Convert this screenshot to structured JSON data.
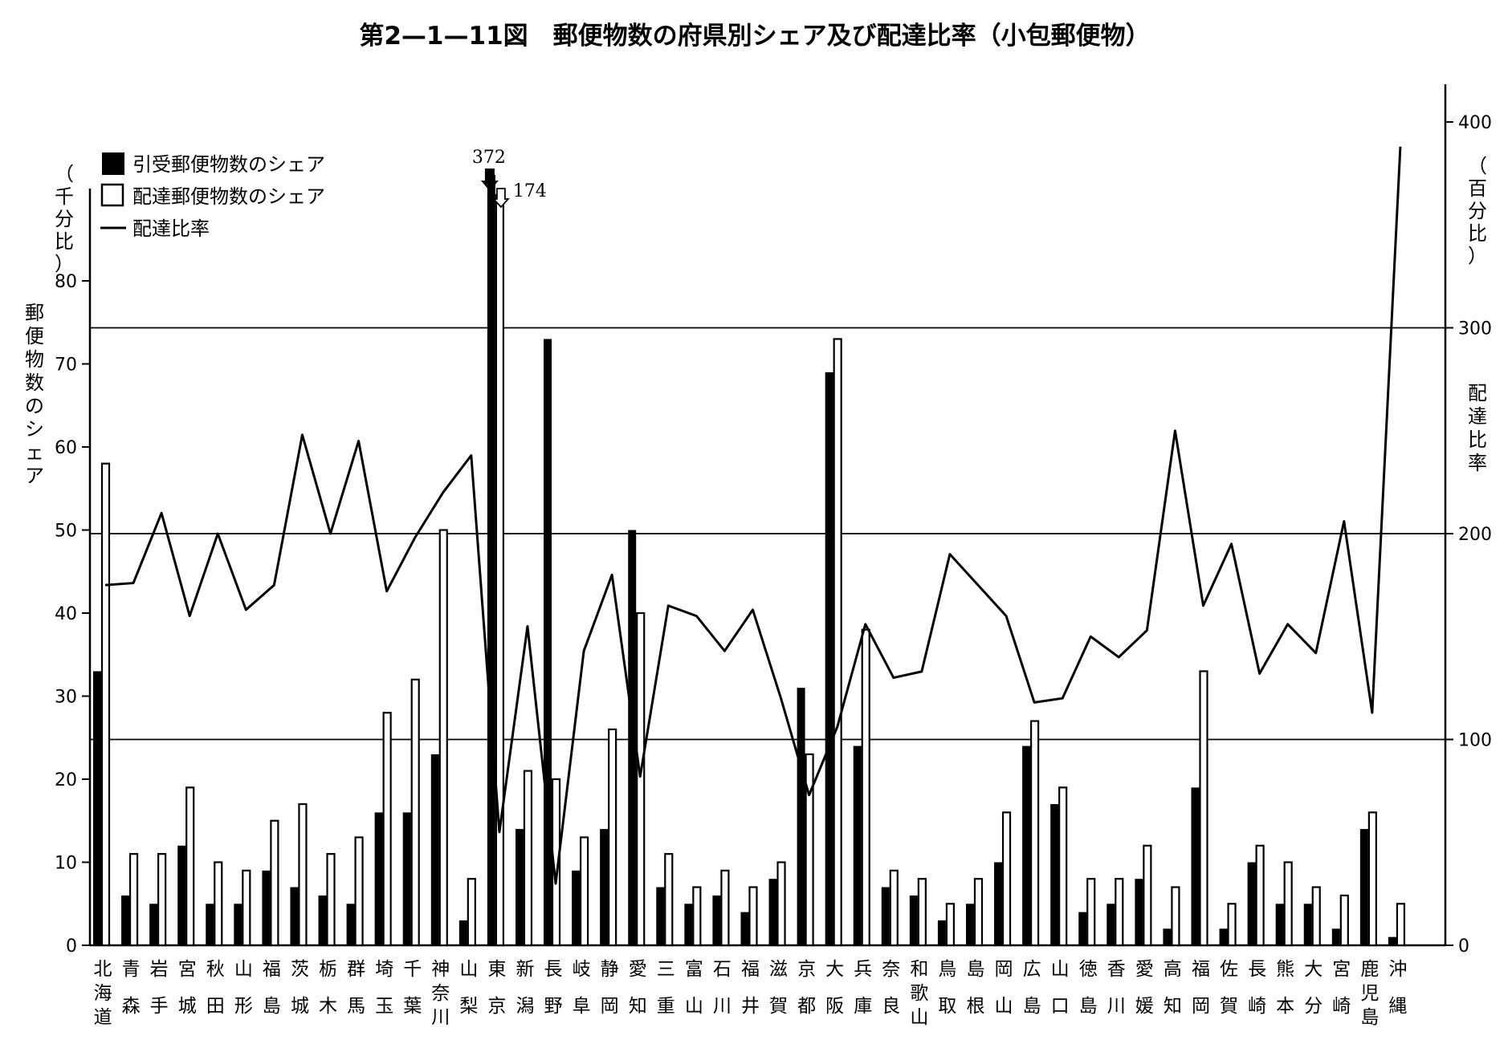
{
  "chart_data": {
    "type": "bar",
    "title": "第2—1—11図　郵便物数の府県別シェア及び配達比率（小包郵便物）",
    "ylabel_left": "郵便物数のシェア",
    "ylabel_left_unit": "（千分比）",
    "ylabel_right": "配達比率",
    "ylabel_right_unit": "（百分比）",
    "ylim_left": [
      0,
      80
    ],
    "ylim_right": [
      0,
      400
    ],
    "yticks_left": [
      "0",
      "10",
      "20",
      "30",
      "40",
      "50",
      "60",
      "70",
      "80"
    ],
    "yticks_right": [
      "0",
      "100",
      "200",
      "300",
      "400"
    ],
    "categories": [
      "北海道",
      "青森",
      "岩手",
      "宮城",
      "秋田",
      "山形",
      "福島",
      "茨城",
      "栃木",
      "群馬",
      "埼玉",
      "千葉",
      "神奈川",
      "山梨",
      "東京",
      "新潟",
      "長野",
      "岐阜",
      "静岡",
      "愛知",
      "三重",
      "富山",
      "石川",
      "福井",
      "滋賀",
      "京都",
      "大阪",
      "兵庫",
      "奈良",
      "和歌山",
      "鳥取",
      "島根",
      "岡山",
      "広島",
      "山口",
      "徳島",
      "香川",
      "愛媛",
      "高知",
      "福岡",
      "佐賀",
      "長崎",
      "熊本",
      "大分",
      "宮崎",
      "鹿児島",
      "沖縄"
    ],
    "series": [
      {
        "name": "引受郵便物数のシェア",
        "style": "filled",
        "values": [
          33,
          6,
          5,
          12,
          5,
          5,
          9,
          7,
          6,
          5,
          16,
          16,
          23,
          3,
          372,
          14,
          73,
          9,
          14,
          50,
          7,
          5,
          6,
          4,
          8,
          31,
          69,
          24,
          7,
          6,
          3,
          5,
          10,
          24,
          17,
          4,
          5,
          8,
          2,
          19,
          2,
          10,
          5,
          5,
          2,
          14,
          1
        ]
      },
      {
        "name": "配達郵便物数のシェア",
        "style": "outline",
        "values": [
          58,
          11,
          11,
          19,
          10,
          9,
          15,
          17,
          11,
          13,
          28,
          32,
          50,
          8,
          174,
          21,
          20,
          13,
          26,
          40,
          11,
          7,
          9,
          7,
          10,
          23,
          73,
          38,
          9,
          8,
          5,
          8,
          16,
          27,
          19,
          8,
          8,
          12,
          7,
          33,
          5,
          12,
          10,
          7,
          6,
          16,
          5
        ]
      },
      {
        "name": "配達比率",
        "style": "line",
        "axis": "right",
        "values": [
          175,
          176,
          210,
          160,
          200,
          163,
          175,
          248,
          200,
          245,
          172,
          198,
          220,
          238,
          55,
          155,
          30,
          143,
          180,
          82,
          165,
          160,
          143,
          163,
          120,
          73,
          106,
          156,
          130,
          133,
          190,
          175,
          160,
          118,
          120,
          150,
          140,
          153,
          250,
          165,
          195,
          132,
          156,
          142,
          206,
          113,
          388
        ]
      }
    ],
    "annotations": [
      {
        "text": "372",
        "target": "東京",
        "series": "引受郵便物数のシェア"
      },
      {
        "text": "174",
        "target": "東京",
        "series": "配達郵便物数のシェア"
      }
    ],
    "reference_lines_right": [
      100,
      200,
      300
    ],
    "legend_position": "top-left",
    "colors": {
      "filled_bar": "#000000",
      "outline_bar": "#ffffff",
      "line": "#000000"
    }
  }
}
